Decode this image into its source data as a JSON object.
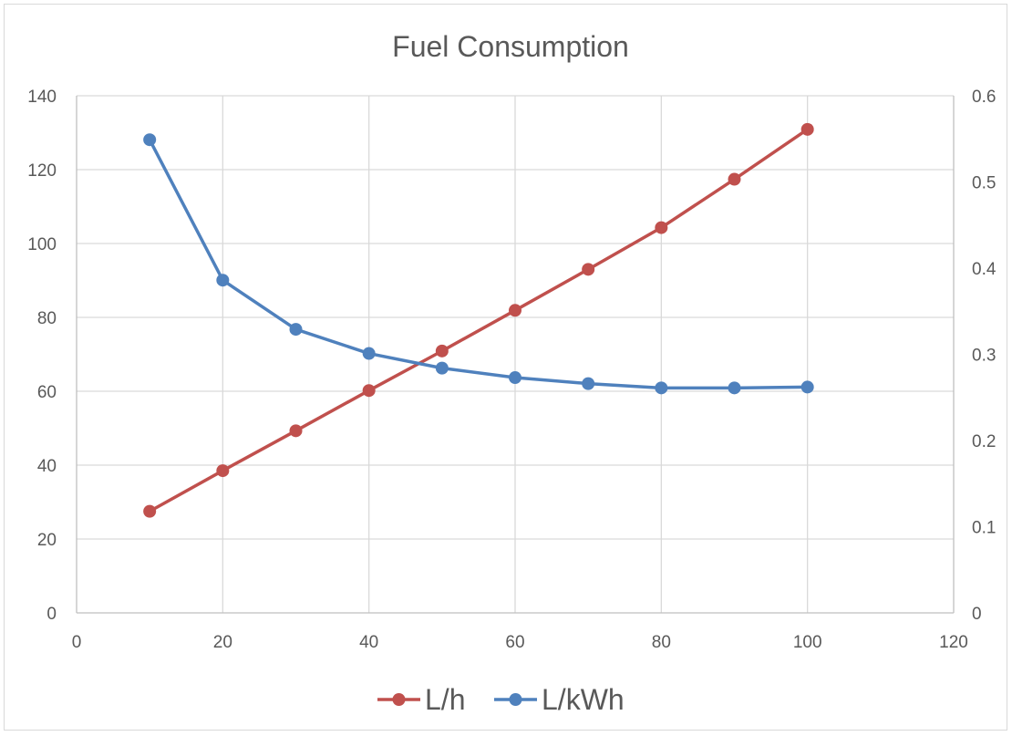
{
  "chart_data": {
    "type": "line",
    "title": "Fuel Consumption",
    "xlabel": "",
    "ylabel": "",
    "xlim": [
      0,
      120
    ],
    "x_ticks": [
      "0",
      "20",
      "40",
      "60",
      "80",
      "100",
      "120"
    ],
    "ylim_left": [
      0,
      140
    ],
    "y_ticks_left": [
      "0",
      "20",
      "40",
      "60",
      "80",
      "100",
      "120",
      "140"
    ],
    "ylim_right": [
      0,
      0.6
    ],
    "y_ticks_right": [
      "0",
      "0.1",
      "0.2",
      "0.3",
      "0.4",
      "0.5",
      "0.6"
    ],
    "grid": true,
    "legend_position": "bottom",
    "series": [
      {
        "name": "L/h",
        "axis": "left",
        "color": "#c0504d",
        "x": [
          10,
          20,
          30,
          40,
          50,
          60,
          70,
          80,
          90,
          100
        ],
        "values": [
          27.5,
          38.5,
          49.3,
          60.2,
          70.9,
          81.9,
          93.0,
          104.3,
          117.4,
          130.9
        ]
      },
      {
        "name": "L/kWh",
        "axis": "right",
        "color": "#4f81bd",
        "x": [
          10,
          20,
          30,
          40,
          50,
          60,
          70,
          80,
          90,
          100
        ],
        "values": [
          0.549,
          0.386,
          0.329,
          0.301,
          0.284,
          0.273,
          0.266,
          0.261,
          0.261,
          0.262
        ]
      }
    ]
  }
}
